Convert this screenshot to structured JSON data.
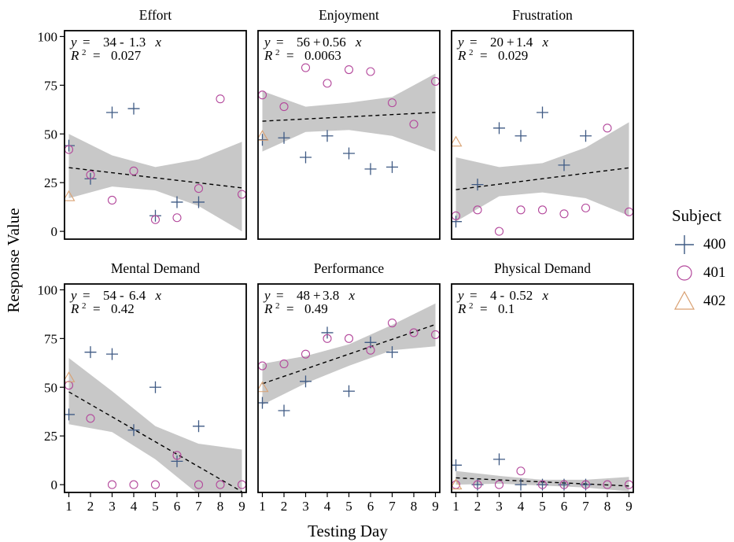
{
  "chart_data": {
    "type": "scatter",
    "xlabel": "Testing Day",
    "ylabel": "Response Value",
    "xlim": [
      0.8,
      9.2
    ],
    "ylim": [
      -4,
      103
    ],
    "xticks": [
      1,
      2,
      3,
      4,
      5,
      6,
      7,
      8,
      9
    ],
    "yticks": [
      0,
      25,
      50,
      75,
      100
    ],
    "grid": false,
    "legend": {
      "title": "Subject",
      "position": "right",
      "entries": [
        {
          "label": "400",
          "marker": "plus",
          "color": "#3f5a84"
        },
        {
          "label": "401",
          "marker": "circle",
          "color": "#b3479b"
        },
        {
          "label": "402",
          "marker": "triangle",
          "color": "#d9a071"
        }
      ]
    },
    "panels": [
      {
        "title": "Effort",
        "eq": {
          "y": "y",
          "eq": "=",
          "a": "34",
          "op": "-",
          "b": "1.3",
          "x": "x",
          "r": "R",
          "sup": "2",
          "r2": "0.027"
        },
        "fit": {
          "intercept": 34,
          "slope": -1.3
        },
        "ci": {
          "x": [
            1,
            3,
            5,
            7,
            9
          ],
          "lower": [
            17,
            23,
            21,
            13,
            0
          ],
          "upper": [
            50,
            39,
            33,
            37,
            46
          ]
        },
        "series": [
          {
            "subject": "400",
            "x": [
              1,
              2,
              3,
              4,
              5,
              6,
              7
            ],
            "y": [
              44,
              27,
              61,
              63,
              8,
              15,
              15
            ]
          },
          {
            "subject": "401",
            "x": [
              1,
              2,
              3,
              4,
              5,
              6,
              7,
              8,
              9
            ],
            "y": [
              42,
              29,
              16,
              31,
              6,
              7,
              22,
              68,
              19
            ]
          },
          {
            "subject": "402",
            "x": [
              1
            ],
            "y": [
              18
            ]
          }
        ]
      },
      {
        "title": "Enjoyment",
        "eq": {
          "y": "y",
          "eq": "=",
          "a": "56",
          "op": "+",
          "b": "0.56",
          "x": "x",
          "r": "R",
          "sup": "2",
          "r2": "0.0063"
        },
        "fit": {
          "intercept": 56,
          "slope": 0.56
        },
        "ci": {
          "x": [
            1,
            3,
            5,
            7,
            9
          ],
          "lower": [
            41,
            51,
            52,
            49,
            41
          ],
          "upper": [
            72,
            64,
            66,
            69,
            81
          ]
        },
        "series": [
          {
            "subject": "400",
            "x": [
              1,
              2,
              3,
              4,
              5,
              6,
              7
            ],
            "y": [
              47,
              48,
              38,
              49,
              40,
              32,
              33
            ]
          },
          {
            "subject": "401",
            "x": [
              1,
              2,
              3,
              4,
              5,
              6,
              7,
              8,
              9
            ],
            "y": [
              70,
              64,
              84,
              76,
              83,
              82,
              66,
              55,
              77
            ]
          },
          {
            "subject": "402",
            "x": [
              1
            ],
            "y": [
              49
            ]
          }
        ]
      },
      {
        "title": "Frustration",
        "eq": {
          "y": "y",
          "eq": "=",
          "a": "20",
          "op": "+",
          "b": "1.4",
          "x": "x",
          "r": "R",
          "sup": "2",
          "r2": "0.029"
        },
        "fit": {
          "intercept": 20,
          "slope": 1.4
        },
        "ci": {
          "x": [
            1,
            3,
            5,
            7,
            9
          ],
          "lower": [
            5,
            18,
            20,
            17,
            8
          ],
          "upper": [
            38,
            33,
            35,
            43,
            56
          ]
        },
        "series": [
          {
            "subject": "400",
            "x": [
              1,
              2,
              3,
              4,
              5,
              6,
              7
            ],
            "y": [
              5,
              24,
              53,
              49,
              61,
              34,
              49
            ]
          },
          {
            "subject": "401",
            "x": [
              1,
              2,
              3,
              4,
              5,
              6,
              7,
              8,
              9
            ],
            "y": [
              8,
              11,
              0,
              11,
              11,
              9,
              12,
              53,
              10
            ]
          },
          {
            "subject": "402",
            "x": [
              1
            ],
            "y": [
              46
            ]
          }
        ]
      },
      {
        "title": "Mental Demand",
        "eq": {
          "y": "y",
          "eq": "=",
          "a": "54",
          "op": "-",
          "b": "6.4",
          "x": "x",
          "r": "R",
          "sup": "2",
          "r2": "0.42"
        },
        "fit": {
          "intercept": 54,
          "slope": -6.4
        },
        "ci": {
          "x": [
            1,
            3,
            5,
            7,
            9
          ],
          "lower": [
            31,
            27,
            13,
            -5,
            -24
          ],
          "upper": [
            65,
            48,
            30,
            21,
            18
          ]
        },
        "series": [
          {
            "subject": "400",
            "x": [
              1,
              2,
              3,
              4,
              5,
              6,
              7
            ],
            "y": [
              36,
              68,
              67,
              28,
              50,
              12,
              30
            ]
          },
          {
            "subject": "401",
            "x": [
              1,
              2,
              3,
              4,
              5,
              6,
              7,
              8,
              9
            ],
            "y": [
              51,
              34,
              0,
              0,
              0,
              15,
              0,
              0,
              0
            ]
          },
          {
            "subject": "402",
            "x": [
              1
            ],
            "y": [
              55
            ]
          }
        ]
      },
      {
        "title": "Performance",
        "eq": {
          "y": "y",
          "eq": "=",
          "a": "48",
          "op": "+",
          "b": "3.8",
          "x": "x",
          "r": "R",
          "sup": "2",
          "r2": "0.49"
        },
        "fit": {
          "intercept": 48,
          "slope": 3.8
        },
        "ci": {
          "x": [
            1,
            3,
            5,
            7,
            9
          ],
          "lower": [
            41,
            52,
            61,
            69,
            71
          ],
          "upper": [
            62,
            66,
            72,
            82,
            93
          ]
        },
        "series": [
          {
            "subject": "400",
            "x": [
              1,
              2,
              3,
              4,
              5,
              6,
              7
            ],
            "y": [
              42,
              38,
              53,
              78,
              48,
              73,
              68
            ]
          },
          {
            "subject": "401",
            "x": [
              1,
              2,
              3,
              4,
              5,
              6,
              7,
              8,
              9
            ],
            "y": [
              61,
              62,
              67,
              75,
              75,
              69,
              83,
              78,
              77
            ]
          },
          {
            "subject": "402",
            "x": [
              1
            ],
            "y": [
              50
            ]
          }
        ]
      },
      {
        "title": "Physical Demand",
        "eq": {
          "y": "y",
          "eq": "=",
          "a": "4",
          "op": "-",
          "b": "0.52",
          "x": "x",
          "r": "R",
          "sup": "2",
          "r2": "0.1"
        },
        "fit": {
          "intercept": 4,
          "slope": -0.52
        },
        "ci": {
          "x": [
            1,
            3,
            5,
            7,
            9
          ],
          "lower": [
            0,
            0.5,
            -0.5,
            -1.5,
            -3.5
          ],
          "upper": [
            7,
            4.5,
            2.5,
            2.5,
            4
          ]
        },
        "series": [
          {
            "subject": "400",
            "x": [
              1,
              2,
              3,
              4,
              5,
              6,
              7
            ],
            "y": [
              10,
              0,
              13,
              0,
              0,
              0,
              0
            ]
          },
          {
            "subject": "401",
            "x": [
              1,
              2,
              3,
              4,
              5,
              6,
              7,
              8,
              9
            ],
            "y": [
              0,
              0,
              0,
              7,
              0,
              0,
              0,
              0,
              0
            ]
          },
          {
            "subject": "402",
            "x": [
              1
            ],
            "y": [
              0
            ]
          }
        ]
      }
    ]
  }
}
